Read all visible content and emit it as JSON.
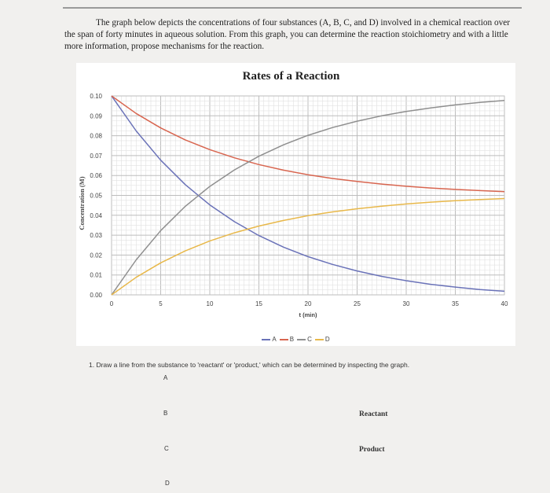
{
  "intro_text": "The graph below depicts the concentrations of four substances (A, B, C, and D) involved in a chemical reaction over the span of forty minutes in aqueous solution. From this graph, you can determine the reaction stoichiometry and with a little more information, propose mechanisms for the reaction.",
  "chart_data": {
    "type": "line",
    "title": "Rates of a Reaction",
    "xlabel": "t (min)",
    "ylabel": "Concentration (M)",
    "xlim": [
      0,
      40
    ],
    "ylim": [
      0,
      0.1
    ],
    "x_ticks": [
      "0",
      "5",
      "10",
      "15",
      "20",
      "25",
      "30",
      "35",
      "40"
    ],
    "y_ticks": [
      "0.00",
      "0.01",
      "0.02",
      "0.03",
      "0.04",
      "0.05",
      "0.06",
      "0.07",
      "0.08",
      "0.09",
      "0.10"
    ],
    "grid": true,
    "legend_position": "bottom",
    "x": [
      0,
      2.5,
      5,
      7.5,
      10,
      12.5,
      15,
      17.5,
      20,
      22.5,
      25,
      27.5,
      30,
      32.5,
      35,
      37.5,
      40
    ],
    "series": [
      {
        "name": "A",
        "color": "#6a72b8",
        "values": [
          0.1,
          0.0824,
          0.0677,
          0.0554,
          0.0452,
          0.0368,
          0.0298,
          0.024,
          0.0192,
          0.0153,
          0.012,
          0.0093,
          0.0071,
          0.0053,
          0.0039,
          0.0027,
          0.0018
        ]
      },
      {
        "name": "B",
        "color": "#d8654f",
        "values": [
          0.1,
          0.0912,
          0.0839,
          0.0779,
          0.073,
          0.0689,
          0.0655,
          0.0627,
          0.0604,
          0.0585,
          0.057,
          0.0557,
          0.0546,
          0.0537,
          0.053,
          0.0524,
          0.0519
        ]
      },
      {
        "name": "C",
        "color": "#8f8f8f",
        "values": [
          0.0,
          0.0176,
          0.0323,
          0.0445,
          0.0545,
          0.0628,
          0.0697,
          0.0754,
          0.0802,
          0.0841,
          0.0873,
          0.09,
          0.0922,
          0.094,
          0.0955,
          0.0967,
          0.0977
        ]
      },
      {
        "name": "D",
        "color": "#e8b84a",
        "values": [
          0.0,
          0.0088,
          0.0161,
          0.0221,
          0.0271,
          0.0312,
          0.0346,
          0.0374,
          0.0398,
          0.0417,
          0.0433,
          0.0446,
          0.0457,
          0.0466,
          0.0473,
          0.0479,
          0.0484
        ]
      }
    ]
  },
  "question": {
    "text": "1.  Draw a line from the substance to 'reactant' or 'product,' which can be determined by inspecting the graph.",
    "substances": [
      "A",
      "B",
      "C",
      "D"
    ],
    "targets": [
      "Reactant",
      "Product"
    ]
  }
}
